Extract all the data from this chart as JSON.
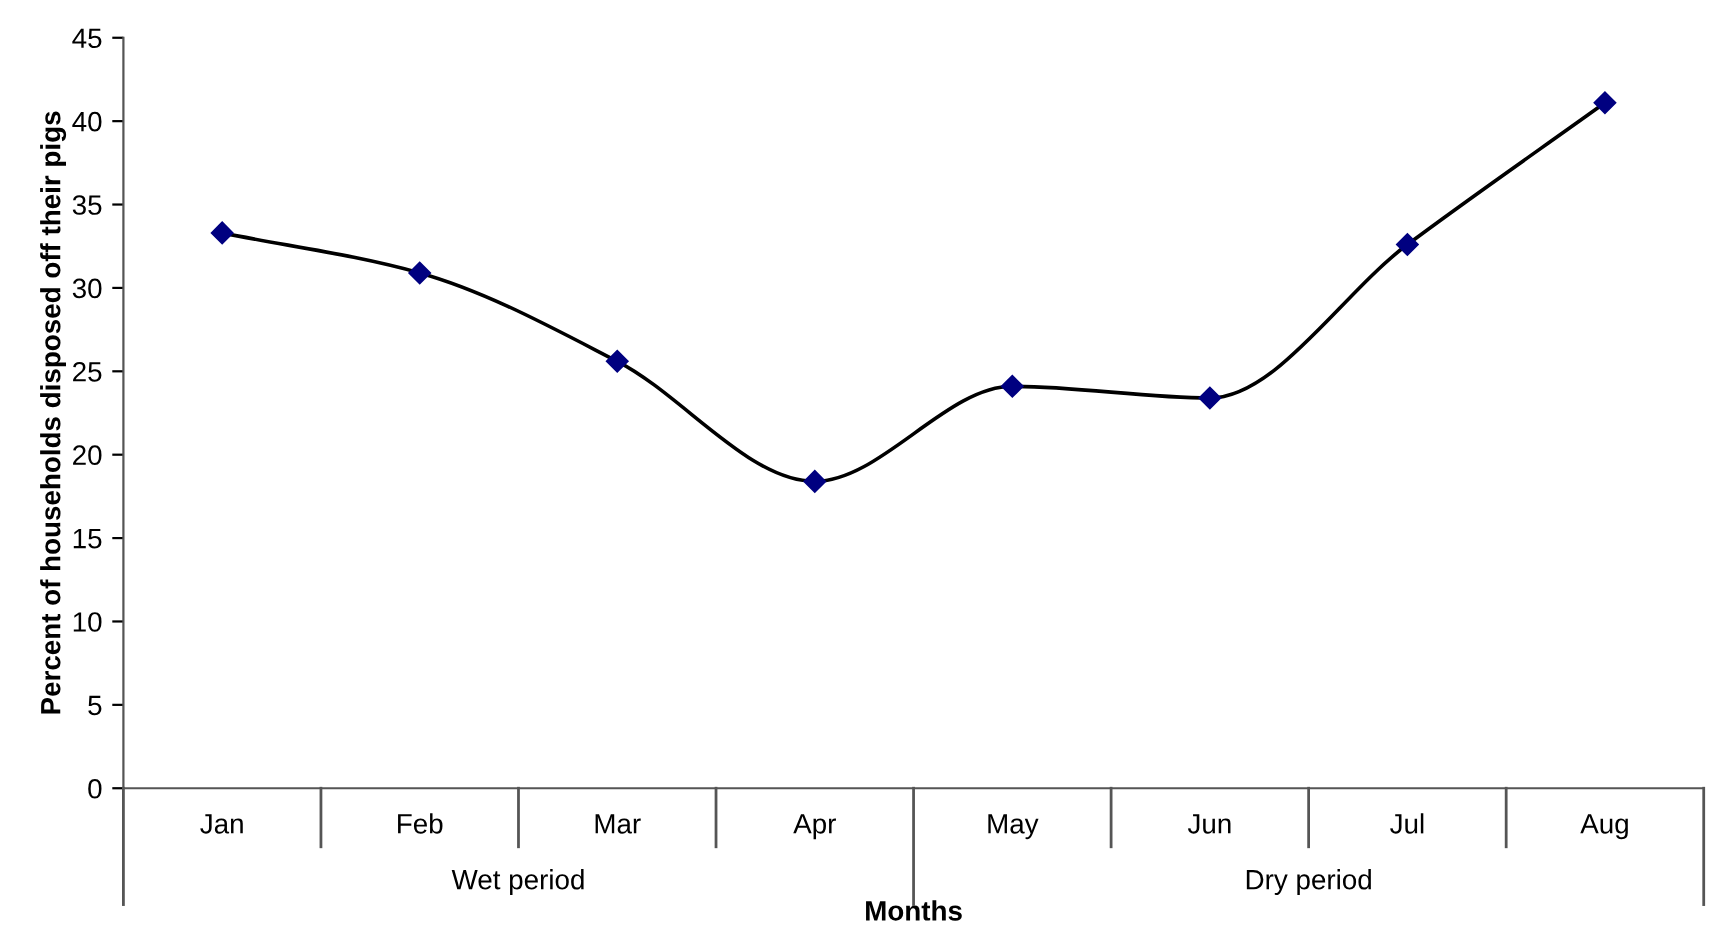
{
  "chart_data": {
    "type": "line",
    "xlabel": "Months",
    "ylabel": "Percent of households disposed off their pigs",
    "categories": [
      "Jan",
      "Feb",
      "Mar",
      "Apr",
      "May",
      "Jun",
      "Jul",
      "Aug"
    ],
    "series": [
      {
        "color": "#000080",
        "values": [
          33.3,
          30.9,
          25.6,
          18.4,
          24.1,
          23.4,
          32.6,
          41.1
        ]
      }
    ],
    "annotations": [
      "Wet period",
      "Dry period"
    ],
    "ylim": [
      0,
      45
    ],
    "yticks": [
      0,
      5,
      10,
      15,
      20,
      25,
      30,
      35,
      40,
      45
    ],
    "marker": "diamond",
    "line_style": "solid",
    "grid": false,
    "legend": false
  }
}
